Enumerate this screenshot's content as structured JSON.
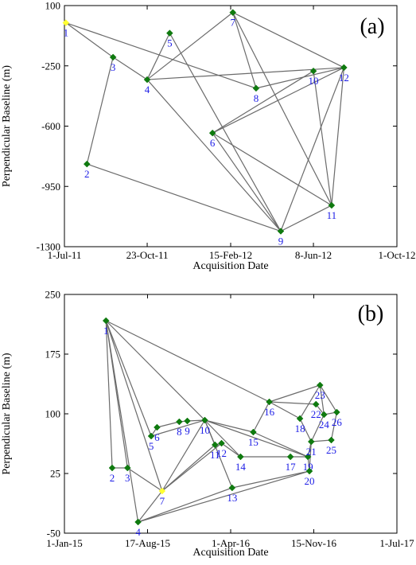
{
  "chart_data": [
    {
      "panel_label": "(a)",
      "type": "scatter",
      "title": "",
      "xlabel": "Acquisition Date",
      "ylabel": "Perpendicular Baseline (m)",
      "x_axis_type": "date",
      "xlim": [
        "2011-07-01",
        "2012-10-01"
      ],
      "ylim": [
        -1300,
        100
      ],
      "x_tick_labels": [
        "1-Jul-11",
        "23-Oct-11",
        "15-Feb-12",
        "8-Jun-12",
        "1-Oct-12"
      ],
      "x_tick_dates": [
        "2011-07-01",
        "2011-10-23",
        "2012-02-15",
        "2012-06-08",
        "2012-10-01"
      ],
      "y_ticks": [
        100,
        -250,
        -600,
        -950,
        -1300
      ],
      "y_tick_labels": [
        "100",
        "-250",
        "-600",
        "-950",
        "-1300"
      ],
      "grid": false,
      "legend": "none",
      "colors": {
        "node": "#0f7a0f",
        "master": "#ffff33",
        "edge": "#6b6b6b",
        "label": "#1c1ce6"
      },
      "points": [
        {
          "id": "1",
          "date": "2011-07-03",
          "baseline": 0,
          "master": true
        },
        {
          "id": "2",
          "date": "2011-08-01",
          "baseline": -820,
          "master": false
        },
        {
          "id": "3",
          "date": "2011-09-06",
          "baseline": -200,
          "master": false
        },
        {
          "id": "4",
          "date": "2011-10-23",
          "baseline": -330,
          "master": false
        },
        {
          "id": "5",
          "date": "2011-11-23",
          "baseline": -60,
          "master": false
        },
        {
          "id": "6",
          "date": "2012-01-21",
          "baseline": -640,
          "master": false
        },
        {
          "id": "7",
          "date": "2012-02-18",
          "baseline": 60,
          "master": false
        },
        {
          "id": "8",
          "date": "2012-03-21",
          "baseline": -380,
          "master": false
        },
        {
          "id": "9",
          "date": "2012-04-24",
          "baseline": -1210,
          "master": false
        },
        {
          "id": "10",
          "date": "2012-06-08",
          "baseline": -280,
          "master": false
        },
        {
          "id": "11",
          "date": "2012-07-03",
          "baseline": -1060,
          "master": false
        },
        {
          "id": "12",
          "date": "2012-07-20",
          "baseline": -260,
          "master": false
        }
      ],
      "edges": [
        [
          "1",
          "3"
        ],
        [
          "1",
          "8"
        ],
        [
          "2",
          "3"
        ],
        [
          "2",
          "9"
        ],
        [
          "3",
          "4"
        ],
        [
          "4",
          "5"
        ],
        [
          "4",
          "7"
        ],
        [
          "4",
          "9"
        ],
        [
          "4",
          "12"
        ],
        [
          "5",
          "9"
        ],
        [
          "6",
          "9"
        ],
        [
          "6",
          "10"
        ],
        [
          "6",
          "11"
        ],
        [
          "6",
          "12"
        ],
        [
          "7",
          "8"
        ],
        [
          "7",
          "11"
        ],
        [
          "7",
          "12"
        ],
        [
          "8",
          "12"
        ],
        [
          "9",
          "11"
        ],
        [
          "9",
          "12"
        ],
        [
          "10",
          "11"
        ],
        [
          "11",
          "12"
        ]
      ]
    },
    {
      "panel_label": "(b)",
      "type": "scatter",
      "title": "",
      "xlabel": "Acquisition Date",
      "ylabel": "Perpendicular Baseline (m)",
      "x_axis_type": "date",
      "xlim": [
        "2015-01-01",
        "2017-07-01"
      ],
      "ylim": [
        -50,
        250
      ],
      "x_tick_labels": [
        "1-Jan-15",
        "17-Aug-15",
        "1-Apr-16",
        "15-Nov-16",
        "1-Jul-17"
      ],
      "x_tick_dates": [
        "2015-01-01",
        "2015-08-17",
        "2016-04-01",
        "2016-11-15",
        "2017-07-01"
      ],
      "y_ticks": [
        250,
        175,
        100,
        25,
        -50
      ],
      "y_tick_labels": [
        "250",
        "175",
        "100",
        "25",
        "-50"
      ],
      "grid": false,
      "legend": "none",
      "colors": {
        "node": "#0f7a0f",
        "master": "#ffff33",
        "edge": "#6b6b6b",
        "label": "#1c1ce6"
      },
      "points": [
        {
          "id": "1",
          "date": "2015-04-25",
          "baseline": 217,
          "master": false
        },
        {
          "id": "2",
          "date": "2015-05-12",
          "baseline": 32,
          "master": false
        },
        {
          "id": "3",
          "date": "2015-06-23",
          "baseline": 32,
          "master": false
        },
        {
          "id": "4",
          "date": "2015-07-22",
          "baseline": -36,
          "master": false
        },
        {
          "id": "5",
          "date": "2015-08-27",
          "baseline": 72,
          "master": false
        },
        {
          "id": "6",
          "date": "2015-09-12",
          "baseline": 83,
          "master": false
        },
        {
          "id": "7",
          "date": "2015-09-26",
          "baseline": 3,
          "master": true
        },
        {
          "id": "8",
          "date": "2015-11-12",
          "baseline": 90,
          "master": false
        },
        {
          "id": "9",
          "date": "2015-12-04",
          "baseline": 91,
          "master": false
        },
        {
          "id": "10",
          "date": "2016-01-21",
          "baseline": 92,
          "master": false
        },
        {
          "id": "11",
          "date": "2016-02-18",
          "baseline": 61,
          "master": false
        },
        {
          "id": "12",
          "date": "2016-03-07",
          "baseline": 63,
          "master": false
        },
        {
          "id": "13",
          "date": "2016-04-05",
          "baseline": 7,
          "master": false
        },
        {
          "id": "14",
          "date": "2016-04-28",
          "baseline": 46,
          "master": false
        },
        {
          "id": "15",
          "date": "2016-06-02",
          "baseline": 77,
          "master": false
        },
        {
          "id": "16",
          "date": "2016-07-16",
          "baseline": 115,
          "master": false
        },
        {
          "id": "17",
          "date": "2016-09-12",
          "baseline": 46,
          "master": false
        },
        {
          "id": "18",
          "date": "2016-10-08",
          "baseline": 94,
          "master": false
        },
        {
          "id": "19",
          "date": "2016-10-30",
          "baseline": 46,
          "master": false
        },
        {
          "id": "20",
          "date": "2016-11-03",
          "baseline": 28,
          "master": false
        },
        {
          "id": "21",
          "date": "2016-11-08",
          "baseline": 65,
          "master": false
        },
        {
          "id": "22",
          "date": "2016-11-21",
          "baseline": 112,
          "master": false
        },
        {
          "id": "23",
          "date": "2016-12-02",
          "baseline": 136,
          "master": false
        },
        {
          "id": "24",
          "date": "2016-12-13",
          "baseline": 99,
          "master": false
        },
        {
          "id": "25",
          "date": "2017-01-02",
          "baseline": 67,
          "master": false
        },
        {
          "id": "26",
          "date": "2017-01-17",
          "baseline": 102,
          "master": false
        }
      ],
      "edges": [
        [
          "1",
          "2"
        ],
        [
          "1",
          "3"
        ],
        [
          "1",
          "4"
        ],
        [
          "1",
          "5"
        ],
        [
          "1",
          "7"
        ],
        [
          "1",
          "10"
        ],
        [
          "1",
          "16"
        ],
        [
          "2",
          "3"
        ],
        [
          "3",
          "7"
        ],
        [
          "4",
          "7"
        ],
        [
          "4",
          "13"
        ],
        [
          "4",
          "20"
        ],
        [
          "5",
          "6"
        ],
        [
          "5",
          "10"
        ],
        [
          "6",
          "8"
        ],
        [
          "7",
          "10"
        ],
        [
          "7",
          "11"
        ],
        [
          "7",
          "12"
        ],
        [
          "8",
          "9"
        ],
        [
          "9",
          "10"
        ],
        [
          "10",
          "11"
        ],
        [
          "10",
          "13"
        ],
        [
          "10",
          "14"
        ],
        [
          "10",
          "15"
        ],
        [
          "10",
          "19"
        ],
        [
          "11",
          "12"
        ],
        [
          "12",
          "14"
        ],
        [
          "13",
          "20"
        ],
        [
          "14",
          "17"
        ],
        [
          "15",
          "16"
        ],
        [
          "15",
          "19"
        ],
        [
          "16",
          "18"
        ],
        [
          "16",
          "22"
        ],
        [
          "16",
          "23"
        ],
        [
          "17",
          "19"
        ],
        [
          "18",
          "21"
        ],
        [
          "18",
          "23"
        ],
        [
          "19",
          "20"
        ],
        [
          "19",
          "21"
        ],
        [
          "20",
          "21"
        ],
        [
          "21",
          "24"
        ],
        [
          "21",
          "25"
        ],
        [
          "22",
          "24"
        ],
        [
          "23",
          "24"
        ],
        [
          "23",
          "26"
        ],
        [
          "24",
          "26"
        ],
        [
          "25",
          "26"
        ]
      ]
    }
  ]
}
